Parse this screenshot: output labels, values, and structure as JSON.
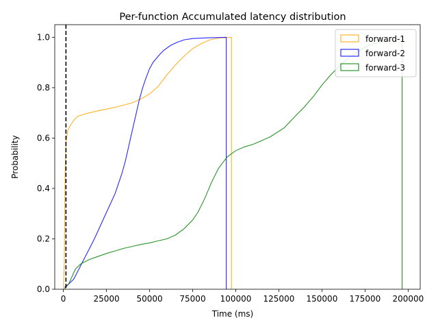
{
  "chart_data": {
    "type": "line",
    "title": "Per-function Accumulated latency distribution",
    "xlabel": "Time (ms)",
    "ylabel": "Probability",
    "xlim": [
      -5000,
      207000
    ],
    "ylim": [
      0,
      1.05
    ],
    "x_ticks": [
      0,
      25000,
      50000,
      75000,
      100000,
      125000,
      150000,
      175000,
      200000
    ],
    "x_tick_labels": [
      "0",
      "25000",
      "50000",
      "75000",
      "100000",
      "125000",
      "150000",
      "175000",
      "200000"
    ],
    "y_ticks": [
      0.0,
      0.2,
      0.4,
      0.6,
      0.8,
      1.0
    ],
    "y_tick_labels": [
      "0.0",
      "0.2",
      "0.4",
      "0.6",
      "0.8",
      "1.0"
    ],
    "grid": false,
    "legend_position": "top-right",
    "vertical_marker": {
      "x": 1500,
      "style": "dashed",
      "color": "#000000"
    },
    "series": [
      {
        "name": "forward-1",
        "color": "#FFA500",
        "points": [
          [
            0,
            0
          ],
          [
            500,
            0.1
          ],
          [
            800,
            0.3
          ],
          [
            1000,
            0.45
          ],
          [
            1500,
            0.58
          ],
          [
            2500,
            0.63
          ],
          [
            4000,
            0.65
          ],
          [
            6000,
            0.67
          ],
          [
            8000,
            0.685
          ],
          [
            12000,
            0.695
          ],
          [
            20000,
            0.708
          ],
          [
            30000,
            0.722
          ],
          [
            40000,
            0.74
          ],
          [
            45000,
            0.755
          ],
          [
            50000,
            0.775
          ],
          [
            55000,
            0.805
          ],
          [
            60000,
            0.85
          ],
          [
            65000,
            0.89
          ],
          [
            70000,
            0.925
          ],
          [
            75000,
            0.955
          ],
          [
            80000,
            0.975
          ],
          [
            85000,
            0.99
          ],
          [
            90000,
            0.997
          ],
          [
            97500,
            1.0
          ],
          [
            97500,
            0
          ]
        ]
      },
      {
        "name": "forward-2",
        "color": "#0000FF",
        "points": [
          [
            1000,
            0
          ],
          [
            1000,
            0.01
          ],
          [
            3000,
            0.02
          ],
          [
            6000,
            0.04
          ],
          [
            9000,
            0.08
          ],
          [
            12000,
            0.12
          ],
          [
            15000,
            0.16
          ],
          [
            18000,
            0.2
          ],
          [
            22000,
            0.26
          ],
          [
            26000,
            0.32
          ],
          [
            30000,
            0.38
          ],
          [
            34000,
            0.46
          ],
          [
            36000,
            0.51
          ],
          [
            38000,
            0.57
          ],
          [
            40000,
            0.63
          ],
          [
            42000,
            0.69
          ],
          [
            44000,
            0.75
          ],
          [
            46000,
            0.8
          ],
          [
            48000,
            0.84
          ],
          [
            50000,
            0.875
          ],
          [
            52000,
            0.9
          ],
          [
            55000,
            0.925
          ],
          [
            58000,
            0.947
          ],
          [
            62000,
            0.967
          ],
          [
            66000,
            0.98
          ],
          [
            70000,
            0.99
          ],
          [
            75000,
            0.995
          ],
          [
            85000,
            0.998
          ],
          [
            94500,
            1.0
          ],
          [
            94500,
            0
          ]
        ]
      },
      {
        "name": "forward-3",
        "color": "#008000",
        "points": [
          [
            1000,
            0
          ],
          [
            1000,
            0.005
          ],
          [
            3000,
            0.02
          ],
          [
            5000,
            0.05
          ],
          [
            7000,
            0.08
          ],
          [
            10000,
            0.1
          ],
          [
            15000,
            0.118
          ],
          [
            20000,
            0.13
          ],
          [
            25000,
            0.142
          ],
          [
            30000,
            0.152
          ],
          [
            35000,
            0.162
          ],
          [
            40000,
            0.17
          ],
          [
            45000,
            0.178
          ],
          [
            50000,
            0.184
          ],
          [
            55000,
            0.192
          ],
          [
            60000,
            0.2
          ],
          [
            65000,
            0.215
          ],
          [
            70000,
            0.24
          ],
          [
            75000,
            0.275
          ],
          [
            78000,
            0.305
          ],
          [
            82000,
            0.36
          ],
          [
            86000,
            0.425
          ],
          [
            90000,
            0.48
          ],
          [
            95000,
            0.525
          ],
          [
            100000,
            0.55
          ],
          [
            105000,
            0.565
          ],
          [
            110000,
            0.575
          ],
          [
            120000,
            0.605
          ],
          [
            128000,
            0.64
          ],
          [
            135000,
            0.69
          ],
          [
            140000,
            0.725
          ],
          [
            145000,
            0.765
          ],
          [
            150000,
            0.81
          ],
          [
            155000,
            0.85
          ],
          [
            160000,
            0.885
          ],
          [
            165000,
            0.915
          ],
          [
            170000,
            0.94
          ],
          [
            175000,
            0.96
          ],
          [
            180000,
            0.975
          ],
          [
            190000,
            0.99
          ],
          [
            196500,
            1.0
          ],
          [
            196500,
            0
          ]
        ]
      }
    ]
  }
}
